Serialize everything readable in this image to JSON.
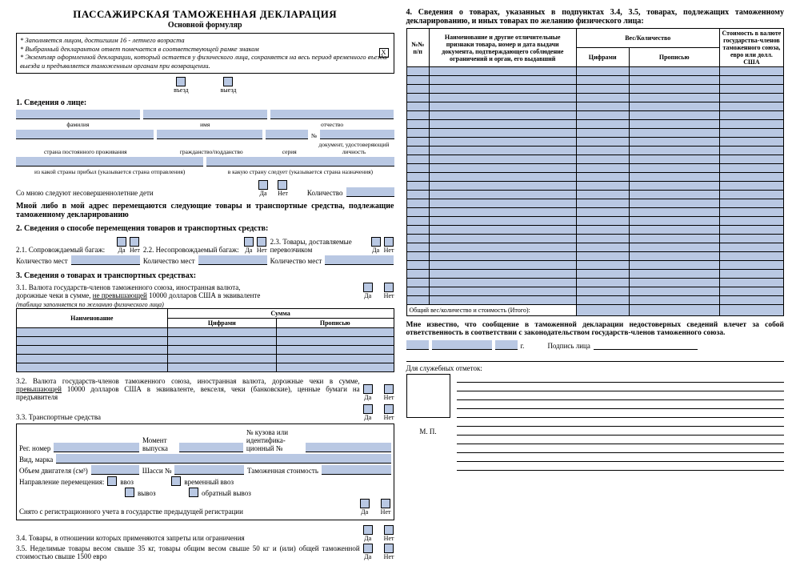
{
  "title": "ПАССАЖИРСКАЯ ТАМОЖЕННАЯ ДЕКЛАРАЦИЯ",
  "subtitle": "Основной формуляр",
  "notes": {
    "l1": "* Заполняется лицом, достигшим 16 - летнего возраста",
    "l2": "* Выбранный декларантом ответ помечается в соответствующей рамке знаком",
    "l3": "* Экземпляр оформленной декларации, который остается у физического лица, сохраняется на весь период временного въезда/выезда и предъявляется таможенным органам при возвращении.",
    "x": "X"
  },
  "dir": {
    "in": "въезд",
    "out": "выезд"
  },
  "s1": {
    "head": "1. Сведения о лице:",
    "fam": "фамилия",
    "name": "имя",
    "patr": "отчество",
    "country": "страна постоянного проживания",
    "citizen": "гражданство/подданство",
    "series": "серия",
    "docnum": "№",
    "doc": "документ, удостоверяющий личность",
    "from": "из какой страны прибыл (указывается страна отправления)",
    "to": "в какую страну следует (указывается страна назначения)",
    "minors": "Со мною следуют несовершеннолетние дети",
    "yes": "Да",
    "no": "Нет",
    "qty": "Количество"
  },
  "s_intro": "Мной либо в мой адрес перемещаются следующие товары и транспортные средства, подлежащие таможенному декларированию",
  "s2": {
    "head": "2. Сведения о способе перемещения товаров и транспортных средств:",
    "c1": "2.1. Сопровождаемый багаж:",
    "c2": "2.2. Несопровождаемый багаж:",
    "c3": "2.3. Товары, доставляемые перевозчиком",
    "places": "Количество мест"
  },
  "s3": {
    "head": "3. Сведения о товарах и транспортных средствах:",
    "p31a": "3.1. Валюта государств-членов таможенного союза, иностранная валюта,",
    "p31b": "дорожные чеки в сумме, ",
    "p31u": "не превышающей",
    "p31c": " 10000 долларов США в эквиваленте",
    "note31": "(таблица заполняется по желанию физического лица)",
    "th_name": "Наименование",
    "th_sum": "Сумма",
    "th_dig": "Цифрами",
    "th_word": "Прописью",
    "p32": "3.2. Валюта государств-членов таможенного союза, иностранная валюта, дорожные чеки в сумме, ",
    "p32u": "превышающей",
    "p32b": " 10000 долларов США в эквиваленте, векселя, чеки (банковские), ценные бумаги на предъявителя",
    "p33": "3.3. Транспортные средства",
    "reg": "Рег. номер",
    "moment": "Момент выпуска",
    "body": "№ кузова или идентифика-ционный №",
    "make": "Вид, марка",
    "engine": "Объем двигателя (см³)",
    "chassis": "Шасси №",
    "customs_val": "Таможенная стоимость",
    "direction": "Направление перемещения:",
    "import": "ввоз",
    "temp_import": "временный ввоз",
    "export": "вывоз",
    "return_export": "обратный вывоз",
    "dereg": "Снято с регистрационного учета в государстве предыдущей регистрации",
    "p34": "3.4. Товары, в отношении которых применяются запреты или ограничения",
    "p35": "3.5. Неделимые товары весом свыше 35 кг, товары общим весом свыше 50 кг и (или) общей таможенной стоимостью свыше 1500 евро"
  },
  "s4": {
    "head": "4. Сведения о товарах, указанных в подпунктах 3.4, 3.5, товарах, подлежащих таможенному декларированию, и иных товарах по желанию физического лица:",
    "th_no": "№№ п/п",
    "th_desc": "Наименование и другие отличительные признаки товара, номер и дата выдачи документа, подтверждающего соблюдение ограничений и орган, его выдавший",
    "th_weight": "Вес/Количество",
    "th_dig": "Цифрами",
    "th_word": "Прописью",
    "th_val": "Стоимость в валюте государства-членов таможенного союза, евро или долл. США",
    "total": "Общий вес/количество и стоимость (Итого):",
    "decl": "Мне известно, что сообщение в таможенной декларации недостоверных сведений влечет за собой ответственность в соответствии с законодательством государств-членов таможенного союза.",
    "year": "г.",
    "sign": "Подпись лица",
    "service": "Для служебных отметок:",
    "stamp": "М. П."
  },
  "style": {
    "fill_color": "#b9c8e3",
    "rows_s3_table": 5,
    "rows_s4_table": 27,
    "service_lines": 11
  }
}
